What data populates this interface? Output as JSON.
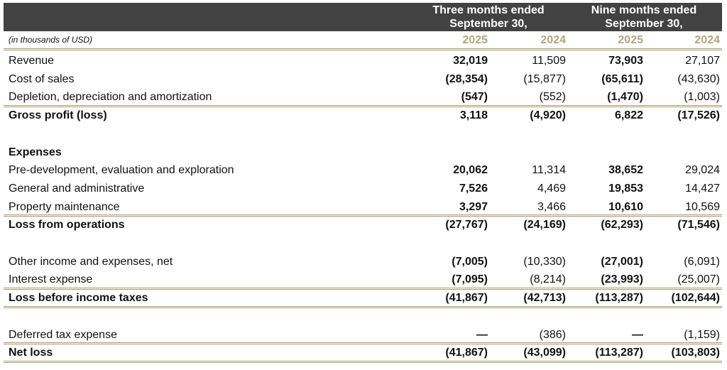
{
  "header": {
    "group1": "Three months ended September 30,",
    "group2": "Nine months ended September 30,",
    "units": "(in thousands of USD)",
    "years": [
      "2025",
      "2024",
      "2025",
      "2024"
    ]
  },
  "colors": {
    "header_band": "#424242",
    "year_text": "#b3a67c",
    "rule": "#a99b6e"
  },
  "rows": [
    {
      "label": "Revenue",
      "bold": false,
      "values": [
        "32,019",
        "11,509",
        "73,903",
        "27,107"
      ]
    },
    {
      "label": "Cost of sales",
      "bold": false,
      "values": [
        "(28,354)",
        "(15,877)",
        "(65,611)",
        "(43,630)"
      ]
    },
    {
      "label": "Depletion, depreciation and amortization",
      "bold": false,
      "values": [
        "(547)",
        "(552)",
        "(1,470)",
        "(1,003)"
      ]
    },
    {
      "label": "Gross profit (loss)",
      "bold": true,
      "values": [
        "3,118",
        "(4,920)",
        "6,822",
        "(17,526)"
      ]
    },
    {
      "label": "Expenses",
      "bold": true,
      "values": [
        "",
        "",
        "",
        ""
      ]
    },
    {
      "label": "Pre-development, evaluation and exploration",
      "bold": false,
      "values": [
        "20,062",
        "11,314",
        "38,652",
        "29,024"
      ]
    },
    {
      "label": "General and administrative",
      "bold": false,
      "values": [
        "7,526",
        "4,469",
        "19,853",
        "14,427"
      ]
    },
    {
      "label": "Property maintenance",
      "bold": false,
      "values": [
        "3,297",
        "3,466",
        "10,610",
        "10,569"
      ]
    },
    {
      "label": "Loss from operations",
      "bold": true,
      "values": [
        "(27,767)",
        "(24,169)",
        "(62,293)",
        "(71,546)"
      ]
    },
    {
      "label": "Other income and expenses, net",
      "bold": false,
      "values": [
        "(7,005)",
        "(10,330)",
        "(27,001)",
        "(6,091)"
      ]
    },
    {
      "label": "Interest expense",
      "bold": false,
      "values": [
        "(7,095)",
        "(8,214)",
        "(23,993)",
        "(25,007)"
      ]
    },
    {
      "label": "Loss before income taxes",
      "bold": true,
      "values": [
        "(41,867)",
        "(42,713)",
        "(113,287)",
        "(102,644)"
      ]
    },
    {
      "label": "Deferred tax expense",
      "bold": false,
      "values": [
        "—",
        "(386)",
        "—",
        "(1,159)"
      ]
    },
    {
      "label": "Net loss",
      "bold": true,
      "values": [
        "(41,867)",
        "(43,099)",
        "(113,287)",
        "(103,803)"
      ]
    }
  ]
}
